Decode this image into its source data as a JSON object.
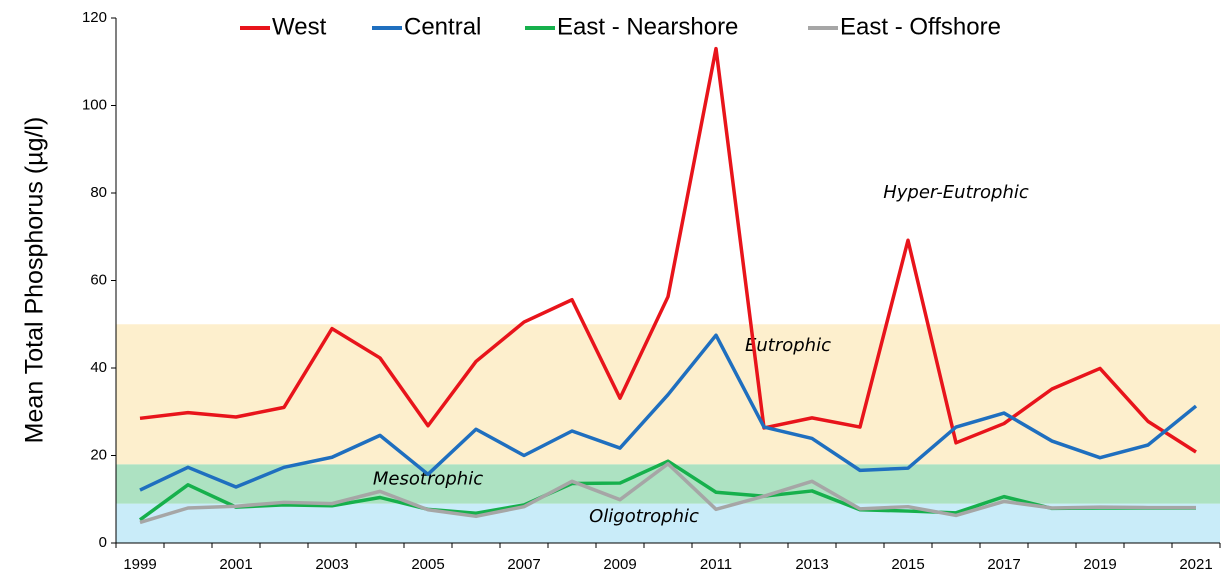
{
  "chart_data": {
    "type": "line",
    "y_label": "Mean Total Phosphorus (µg/l)",
    "categories": [
      "1999",
      null,
      "2001",
      null,
      "2003",
      null,
      "2005",
      null,
      "2007",
      null,
      "2009",
      null,
      "2011",
      null,
      "2013",
      null,
      "2015",
      null,
      "2017",
      null,
      "2019",
      null,
      "2021"
    ],
    "series": [
      {
        "name": "West",
        "color": "#e8141b",
        "values": [
          28.5,
          29.8,
          28.8,
          31,
          49,
          42.3,
          26.8,
          41.5,
          50.5,
          55.6,
          33.1,
          56.3,
          113,
          26.3,
          28.6,
          26.5,
          69.2,
          22.9,
          27.3,
          35.2,
          39.9,
          27.8,
          20.8
        ]
      },
      {
        "name": "Central",
        "color": "#1f6fbf",
        "values": [
          12.1,
          17.3,
          12.8,
          17.3,
          19.6,
          24.6,
          15.7,
          26,
          20,
          25.6,
          21.7,
          33.9,
          47.5,
          26.5,
          23.9,
          16.6,
          17.1,
          26.5,
          29.7,
          23.3,
          19.5,
          22.4,
          31.3
        ]
      },
      {
        "name": "East - Nearshore",
        "color": "#16b04c",
        "values": [
          5.3,
          13.3,
          8.2,
          8.7,
          8.5,
          10.4,
          7.7,
          6.8,
          8.7,
          13.6,
          13.7,
          18.7,
          11.6,
          10.7,
          11.9,
          7.6,
          7.3,
          6.9,
          10.6,
          7.9,
          8,
          8,
          8
        ]
      },
      {
        "name": "East - Offshore",
        "color": "#a6a6a6",
        "values": [
          4.7,
          8,
          8.4,
          9.3,
          9,
          11.8,
          7.6,
          6.1,
          8.3,
          14.1,
          9.9,
          18.1,
          7.7,
          10.7,
          14.1,
          7.8,
          8.3,
          6.3,
          9.5,
          8,
          8.2,
          8.1,
          8.1
        ]
      }
    ],
    "bands": [
      {
        "label": "Oligotrophic",
        "from": 0,
        "to": 9,
        "color": "#c9ecf9"
      },
      {
        "label": "Mesotrophic",
        "from": 9,
        "to": 18,
        "color": "#ade2c2"
      },
      {
        "label": "Eutrophic",
        "from": 18,
        "to": 50,
        "color": "#fdefcd"
      },
      {
        "label": "Hyper-Eutrophic",
        "from": 50,
        "to": 120,
        "color": null
      }
    ],
    "ylim": [
      0,
      120
    ],
    "yticks": [
      0,
      20,
      40,
      60,
      80,
      100,
      120
    ],
    "legend": "top"
  }
}
